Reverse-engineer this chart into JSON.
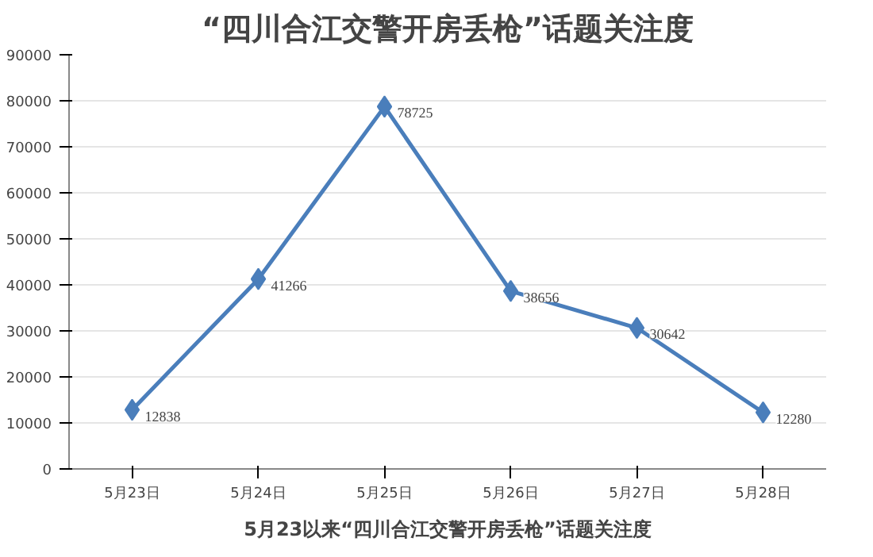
{
  "chart_data": {
    "type": "line",
    "title": "“四川合江交警开房丢枪”话题关注度",
    "categories": [
      "5月23日",
      "5月24日",
      "5月25日",
      "5月26日",
      "5月27日",
      "5月28日"
    ],
    "series": [
      {
        "color": "#4a7ebb",
        "values": [
          12838,
          41266,
          78725,
          38656,
          30642,
          12280
        ]
      }
    ],
    "ylim": [
      0,
      90000
    ],
    "yticks": [
      0,
      10000,
      20000,
      30000,
      40000,
      50000,
      60000,
      70000,
      80000,
      90000
    ],
    "grid": "y",
    "marker": "diamond",
    "line_style": "solid",
    "data_labels": true,
    "annotations": [
      "5月23以来“四川合江交警开房丢枪”话题关注度"
    ]
  }
}
